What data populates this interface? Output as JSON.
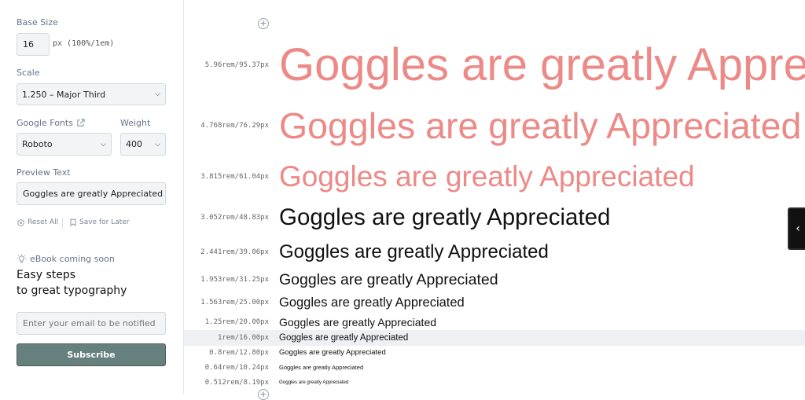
{
  "sidebar": {
    "base_size": {
      "label": "Base Size",
      "value": "16",
      "unit": "px (100%/1em)"
    },
    "scale": {
      "label": "Scale",
      "selected": "1.250 – Major Third"
    },
    "google_fonts": {
      "label": "Google Fonts",
      "selected": "Roboto"
    },
    "weight": {
      "label": "Weight",
      "selected": "400"
    },
    "preview": {
      "label": "Preview Text",
      "value": "Goggles are greatly Appreciated"
    },
    "reset_label": "Reset All",
    "save_label": "Save for Later",
    "ebook": {
      "badge": "eBook coming soon",
      "title_line1": "Easy steps",
      "title_line2": "to great typography",
      "email_placeholder": "Enter your email to be notified",
      "subscribe_label": "Subscribe"
    }
  },
  "accent_color": "#ec8a87",
  "preview_rows": [
    {
      "size": "5.96rem/95.37px",
      "text": "Goggles are greatly Appreciated",
      "accent": true
    },
    {
      "size": "4.768rem/76.29px",
      "text": "Goggles are greatly Appreciated",
      "accent": true
    },
    {
      "size": "3.815rem/61.04px",
      "text": "Goggles are greatly Appreciated",
      "accent": true
    },
    {
      "size": "3.052rem/48.83px",
      "text": "Goggles are greatly Appreciated",
      "accent": false
    },
    {
      "size": "2.441rem/39.06px",
      "text": "Goggles are greatly Appreciated",
      "accent": false
    },
    {
      "size": "1.953rem/31.25px",
      "text": "Goggles are greatly Appreciated",
      "accent": false
    },
    {
      "size": "1.563rem/25.00px",
      "text": "Goggles are greatly Appreciated",
      "accent": false
    },
    {
      "size": "1.25rem/20.00px",
      "text": "Goggles are greatly Appreciated",
      "accent": false
    },
    {
      "size": "1rem/16.00px",
      "text": "Goggles are greatly Appreciated",
      "accent": false,
      "base": true
    },
    {
      "size": "0.8rem/12.80px",
      "text": "Goggles are greatly Appreciated",
      "accent": false
    },
    {
      "size": "0.64rem/10.24px",
      "text": "Goggles are greatly Appreciated",
      "accent": false
    },
    {
      "size": "0.512rem/8.19px",
      "text": "Goggles are greatly Appreciated",
      "accent": false
    }
  ]
}
